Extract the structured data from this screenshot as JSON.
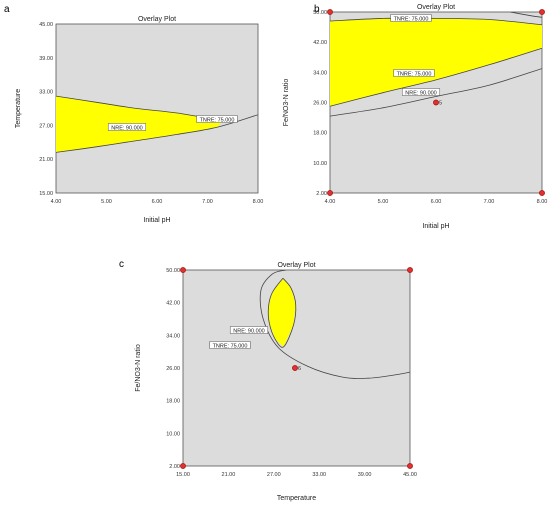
{
  "chart_data": [
    {
      "panel_label": "a",
      "type": "area",
      "title": "Overlay Plot",
      "xlabel": "Initial pH",
      "ylabel": "Temperature",
      "xlim": [
        4.0,
        8.0
      ],
      "ylim": [
        15.0,
        45.0
      ],
      "xticks": [
        "4.00",
        "5.00",
        "6.00",
        "7.00",
        "8.00"
      ],
      "yticks": [
        "15.00",
        "21.00",
        "27.00",
        "33.00",
        "39.00",
        "45.00"
      ],
      "contours": [
        {
          "label": "TNRE: 75.000",
          "points": [
            [
              4.0,
              22.2
            ],
            [
              4.8,
              23.2
            ],
            [
              5.6,
              24.3
            ],
            [
              6.4,
              25.4
            ],
            [
              7.2,
              26.7
            ],
            [
              8.0,
              28.9
            ]
          ]
        },
        {
          "label": "NRE: 90.000",
          "points": [
            [
              4.0,
              32.2
            ],
            [
              4.8,
              31.1
            ],
            [
              5.6,
              30.0
            ],
            [
              6.4,
              29.2
            ],
            [
              7.3,
              27.8
            ]
          ]
        }
      ],
      "regions": [
        {
          "color": "#ffff00",
          "points": [
            [
              4.0,
              32.2
            ],
            [
              4.8,
              31.1
            ],
            [
              5.6,
              30.0
            ],
            [
              6.4,
              29.2
            ],
            [
              7.3,
              27.8
            ],
            [
              7.2,
              26.7
            ],
            [
              6.4,
              25.4
            ],
            [
              5.6,
              24.3
            ],
            [
              4.8,
              23.2
            ],
            [
              4.0,
              22.2
            ]
          ]
        }
      ],
      "points": []
    },
    {
      "panel_label": "b",
      "type": "area",
      "title": "Overlay Plot",
      "xlabel": "Initial pH",
      "ylabel": "Fe/NO3-N ratio",
      "xlim": [
        4.0,
        8.0
      ],
      "ylim": [
        2.0,
        50.0
      ],
      "xticks": [
        "4.00",
        "5.00",
        "6.00",
        "7.00",
        "8.00"
      ],
      "yticks": [
        "2.00",
        "10.00",
        "18.00",
        "26.00",
        "34.00",
        "42.00",
        "50.00"
      ],
      "contours": [
        {
          "label": "TNRE: 75.000",
          "points": [
            [
              4.0,
              47.6
            ],
            [
              5.0,
              48.3
            ],
            [
              6.0,
              48.3
            ],
            [
              7.0,
              48.0
            ],
            [
              8.0,
              46.6
            ]
          ]
        },
        {
          "label": "TNRE: 75.000",
          "points": [
            [
              7.4,
              50.0
            ],
            [
              7.8,
              49.0
            ],
            [
              8.0,
              48.6
            ]
          ]
        },
        {
          "label": "TNRE: 75.000",
          "points": [
            [
              4.0,
              25.0
            ],
            [
              5.0,
              28.6
            ],
            [
              6.0,
              32.0
            ],
            [
              7.0,
              36.0
            ],
            [
              8.0,
              40.4
            ]
          ]
        },
        {
          "label": "NRE: 90.000",
          "points": [
            [
              4.0,
              22.4
            ],
            [
              5.0,
              24.6
            ],
            [
              6.0,
              27.6
            ],
            [
              7.0,
              30.6
            ],
            [
              8.0,
              35.0
            ]
          ]
        }
      ],
      "regions": [
        {
          "color": "#ffff00",
          "points": [
            [
              4.0,
              47.6
            ],
            [
              5.0,
              48.3
            ],
            [
              6.0,
              48.3
            ],
            [
              7.0,
              48.0
            ],
            [
              8.0,
              46.6
            ],
            [
              8.0,
              40.4
            ],
            [
              7.0,
              36.0
            ],
            [
              6.0,
              32.0
            ],
            [
              5.0,
              28.6
            ],
            [
              4.0,
              25.0
            ]
          ]
        }
      ],
      "points": [
        {
          "x": 4.0,
          "y": 50.0
        },
        {
          "x": 8.0,
          "y": 50.0
        },
        {
          "x": 4.0,
          "y": 2.0
        },
        {
          "x": 8.0,
          "y": 2.0
        },
        {
          "x": 6.0,
          "y": 26.0,
          "label": "5"
        }
      ]
    },
    {
      "panel_label": "c",
      "type": "area",
      "title": "Overlay Plot",
      "xlabel": "Temperature",
      "ylabel": "Fe/NO3-N ratio",
      "xlim": [
        15.0,
        45.0
      ],
      "ylim": [
        2.0,
        50.0
      ],
      "xticks": [
        "15.00",
        "21.00",
        "27.00",
        "33.00",
        "39.00",
        "45.00"
      ],
      "yticks": [
        "2.00",
        "10.00",
        "18.00",
        "26.00",
        "34.00",
        "42.00",
        "50.00"
      ],
      "contours": [
        {
          "label": "NRE: 90.000",
          "points": [
            [
              28.2,
              48.0
            ],
            [
              29.3,
              45.5
            ],
            [
              29.9,
              41.5
            ],
            [
              29.6,
              36.5
            ],
            [
              28.3,
              31.2
            ],
            [
              27.2,
              33.0
            ],
            [
              26.4,
              37.0
            ],
            [
              26.3,
              41.0
            ],
            [
              26.8,
              44.5
            ],
            [
              28.2,
              48.0
            ]
          ]
        },
        {
          "label": "TNRE: 75.000",
          "points": [
            [
              28.6,
              50.0
            ],
            [
              26.8,
              49.0
            ],
            [
              25.3,
              45.0
            ],
            [
              25.6,
              38.0
            ],
            [
              27.6,
              31.0
            ],
            [
              31.5,
              26.4
            ],
            [
              36.0,
              23.8
            ],
            [
              39.5,
              23.5
            ],
            [
              43.0,
              24.3
            ],
            [
              45.0,
              25.0
            ]
          ]
        }
      ],
      "regions": [
        {
          "color": "#ffff00",
          "points": [
            [
              28.2,
              48.0
            ],
            [
              29.3,
              45.5
            ],
            [
              29.9,
              41.5
            ],
            [
              29.6,
              36.5
            ],
            [
              28.3,
              31.2
            ],
            [
              27.2,
              33.0
            ],
            [
              26.4,
              37.0
            ],
            [
              26.3,
              41.0
            ],
            [
              26.8,
              44.5
            ]
          ]
        }
      ],
      "points": [
        {
          "x": 15.0,
          "y": 50.0
        },
        {
          "x": 45.0,
          "y": 50.0
        },
        {
          "x": 15.0,
          "y": 2.0
        },
        {
          "x": 45.0,
          "y": 2.0
        },
        {
          "x": 29.8,
          "y": 26.0,
          "label": "6"
        }
      ]
    }
  ]
}
